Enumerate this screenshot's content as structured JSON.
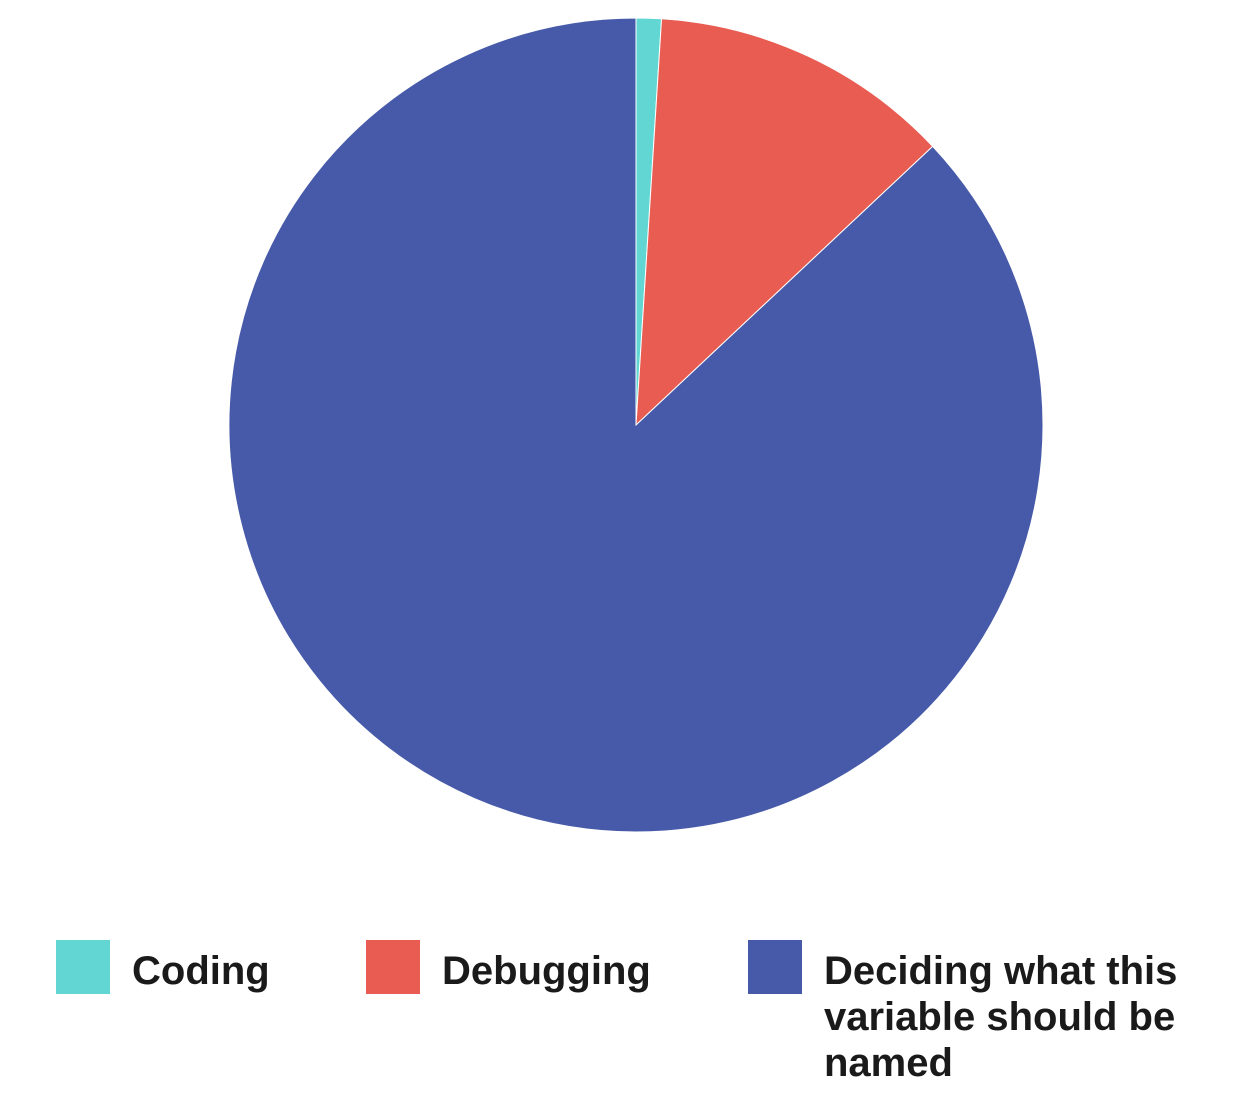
{
  "chart_data": {
    "type": "pie",
    "title": "",
    "start_angle": "top",
    "direction": "clockwise",
    "legend_position": "bottom",
    "slices": [
      {
        "label": "Coding",
        "value": 1,
        "color": "#62D6D3"
      },
      {
        "label": "Debugging",
        "value": 12,
        "color": "#E85C52"
      },
      {
        "label": "Deciding what this variable should be named",
        "value": 87,
        "color": "#465AA9"
      }
    ]
  }
}
